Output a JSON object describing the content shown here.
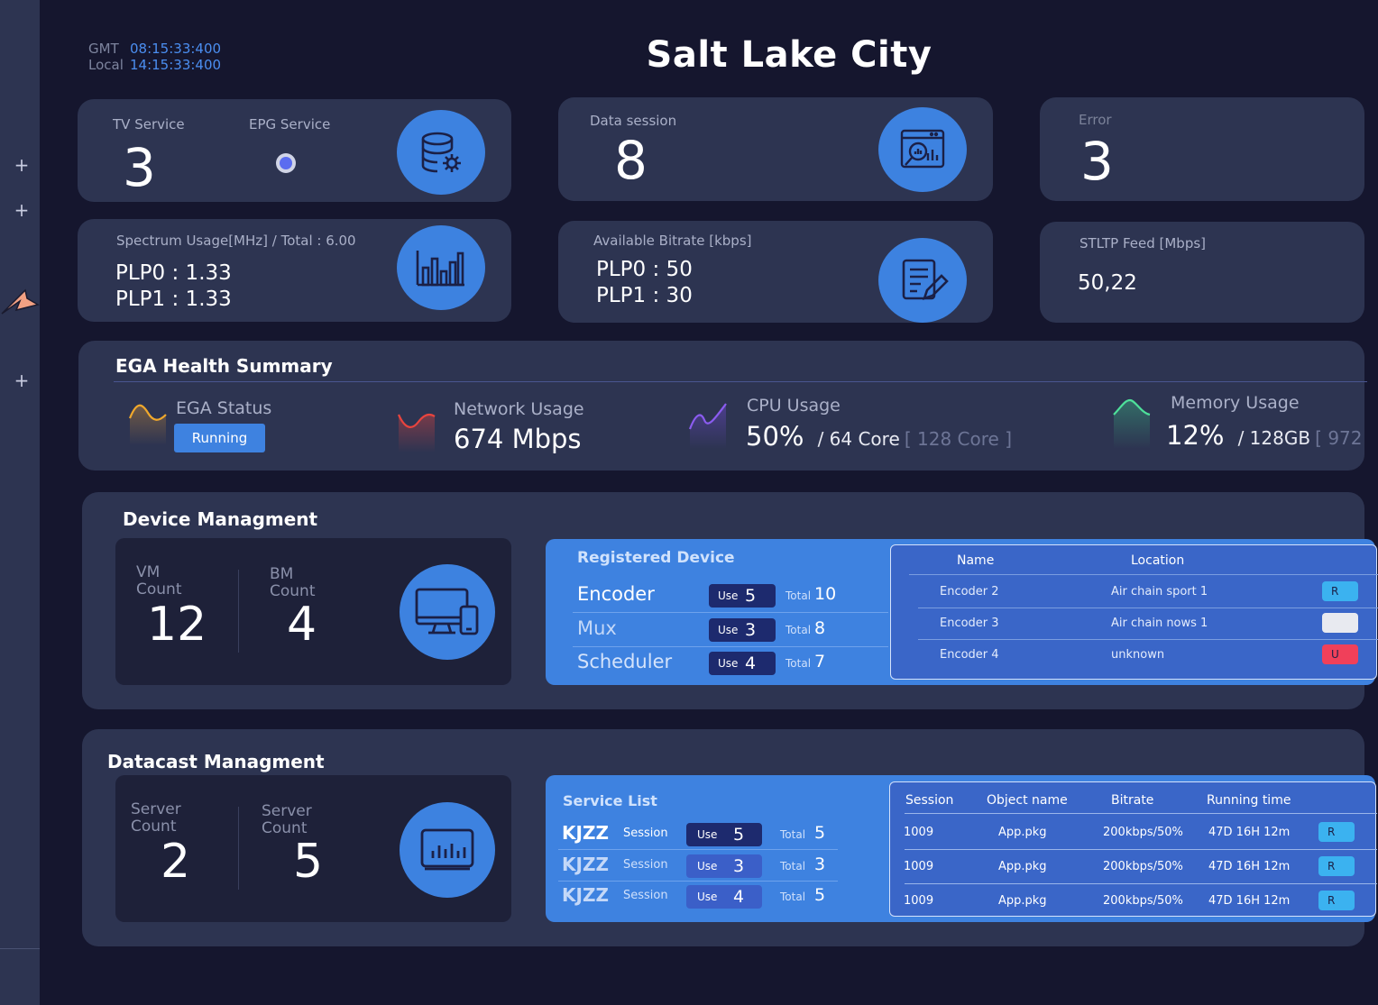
{
  "sidebar": {
    "plus_label": "+"
  },
  "clock": {
    "gmt_label": "GMT",
    "gmt_value": "08:15:33:400",
    "local_label": "Local",
    "local_value": "14:15:33:400"
  },
  "page_title": "Salt Lake City",
  "tv_card": {
    "tv_label": "TV Service",
    "tv_value": "3",
    "epg_label": "EPG Service"
  },
  "data_session": {
    "label": "Data session",
    "value": "8"
  },
  "error_card": {
    "label": "Error",
    "value": "3"
  },
  "spectrum": {
    "label": "Spectrum Usage[MHz]  /  Total : 6.00",
    "plp0": "PLP0 : 1.33",
    "plp1": "PLP1 : 1.33"
  },
  "bitrate": {
    "label": "Available Bitrate [kbps]",
    "plp0": "PLP0 : 50",
    "plp1": "PLP1 : 30"
  },
  "stltp": {
    "label": "STLTP Feed [Mbps]",
    "value": "50,22"
  },
  "ega": {
    "title": "EGA Health Summary",
    "status_label": "EGA Status",
    "status_button": "Running",
    "network_label": "Network Usage",
    "network_value": "674 Mbps",
    "cpu_label": "CPU Usage",
    "cpu_value": "50%",
    "cpu_sub": "/ 64 Core",
    "cpu_dim": "[ 128 Core ]",
    "memory_label": "Memory Usage",
    "memory_value": "12%",
    "memory_sub": "/ 128GB",
    "memory_dim": "[ 972"
  },
  "device": {
    "title": "Device Managment",
    "vm_label_1": "VM",
    "vm_label_2": "Count",
    "vm_value": "12",
    "bm_label_1": "BM",
    "bm_label_2": "Count",
    "bm_value": "4",
    "registered_title": "Registered  Device",
    "use_label": "Use",
    "total_label": "Total",
    "rows": [
      {
        "name": "Encoder",
        "use": "5",
        "total": "10"
      },
      {
        "name": "Mux",
        "use": "3",
        "total": "8"
      },
      {
        "name": "Scheduler",
        "use": "4",
        "total": "7"
      }
    ],
    "table_headers": {
      "name": "Name",
      "location": "Location"
    },
    "table_rows": [
      {
        "name": "Encoder 2",
        "location": "Air chain sport 1",
        "status_color": "#3bb2f0",
        "status_letter": "R"
      },
      {
        "name": "Encoder 3",
        "location": "Air chain nows 1",
        "status_color": "#e8eaf0",
        "status_letter": ""
      },
      {
        "name": "Encoder 4",
        "location": "unknown",
        "status_color": "#f0405a",
        "status_letter": "U"
      }
    ]
  },
  "datacast": {
    "title": "Datacast Managment",
    "server1_label_1": "Server",
    "server1_label_2": "Count",
    "server1_value": "2",
    "server2_label_1": "Server",
    "server2_label_2": "Count",
    "server2_value": "5",
    "service_title": "Service List",
    "session_label": "Session",
    "use_label": "Use",
    "total_label": "Total",
    "rows": [
      {
        "name": "KJZZ",
        "use": "5",
        "total": "5"
      },
      {
        "name": "KJZZ",
        "use": "3",
        "total": "3"
      },
      {
        "name": "KJZZ",
        "use": "4",
        "total": "5"
      }
    ],
    "table_headers": {
      "session": "Session",
      "object": "Object name",
      "bitrate": "Bitrate",
      "running": "Running time"
    },
    "table_rows": [
      {
        "session": "1009",
        "object": "App.pkg",
        "bitrate": "200kbps/50%",
        "running": "47D  16H  12m",
        "btn": "R"
      },
      {
        "session": "1009",
        "object": "App.pkg",
        "bitrate": "200kbps/50%",
        "running": "47D  16H  12m",
        "btn": "R"
      },
      {
        "session": "1009",
        "object": "App.pkg",
        "bitrate": "200kbps/50%",
        "running": "47D  16H  12m",
        "btn": "R"
      }
    ]
  }
}
